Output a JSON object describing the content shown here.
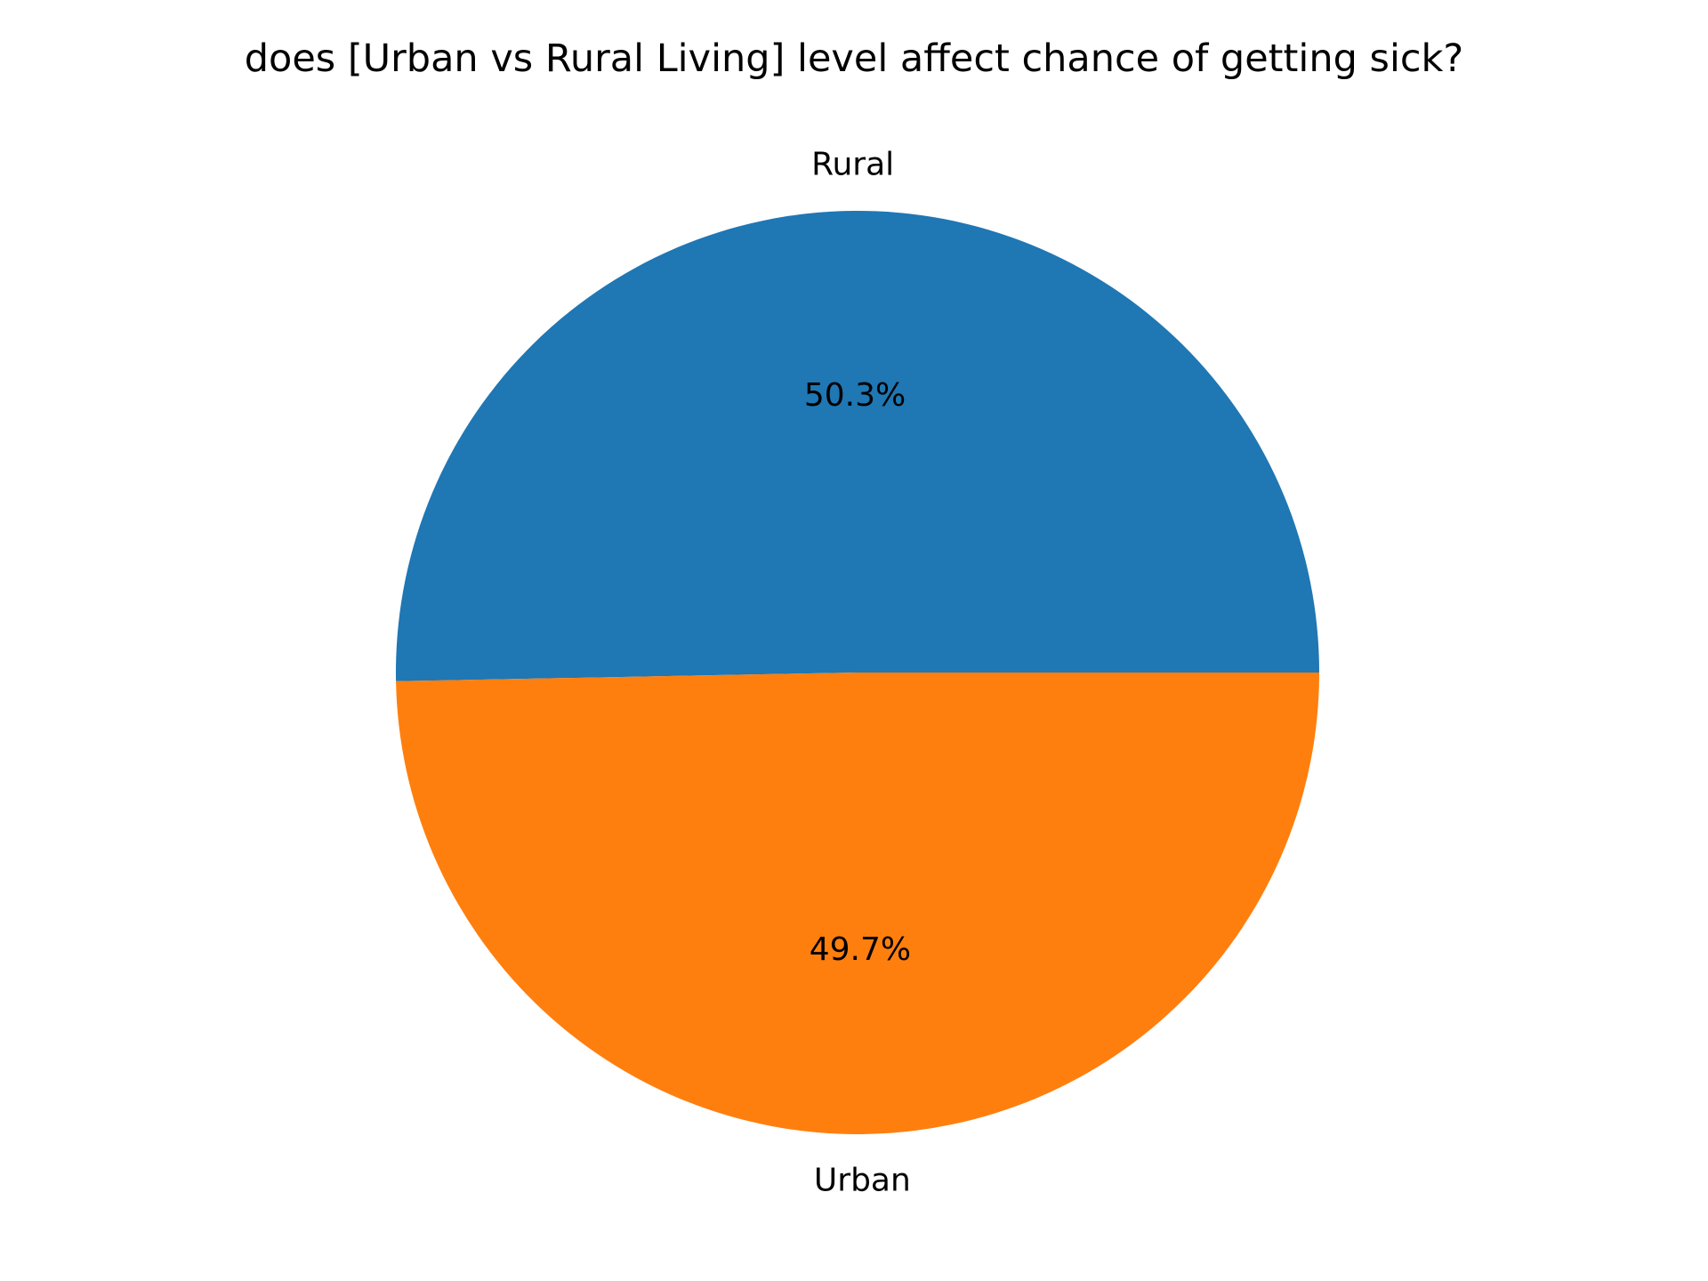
{
  "chart_data": {
    "type": "pie",
    "title": "does [Urban vs Rural Living] level affect chance of getting sick?",
    "categories": [
      "Rural",
      "Urban"
    ],
    "values": [
      50.3,
      49.7
    ],
    "percent_labels": [
      "50.3%",
      "49.7%"
    ],
    "colors": [
      "#1f77b4",
      "#ff7f0e"
    ],
    "start_angle_deg": 0,
    "direction": "counterclockwise"
  }
}
